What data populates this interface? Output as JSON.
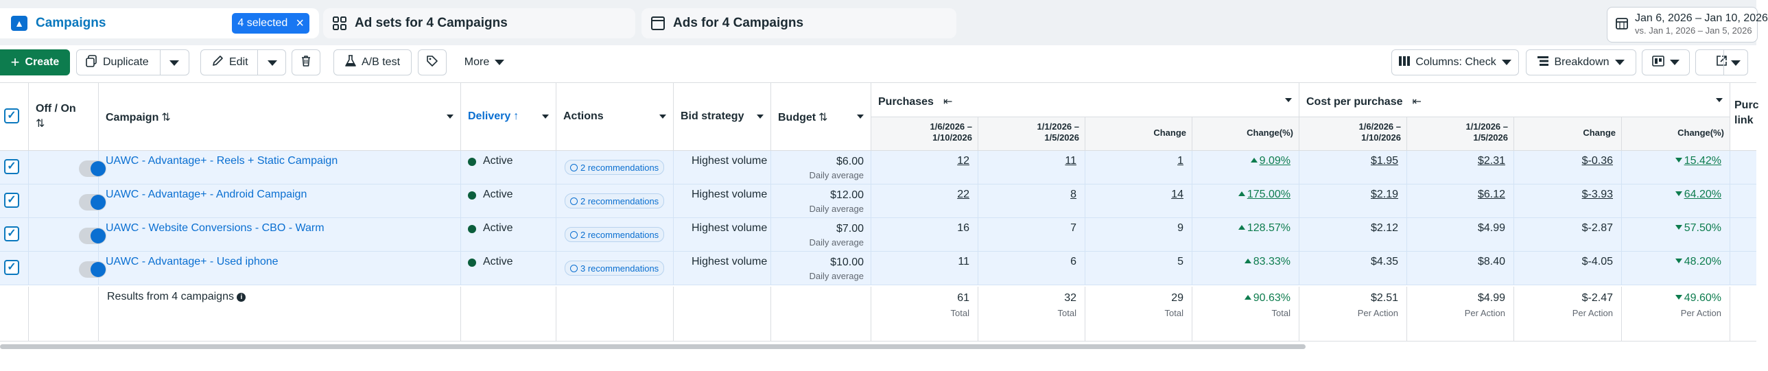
{
  "tabs": {
    "campaigns": {
      "icon": "campaigns-icon",
      "label": "Campaigns",
      "selected": "4 selected",
      "close": "×"
    },
    "adsets": {
      "icon": "grid-icon",
      "label": "Ad sets for 4 Campaigns"
    },
    "ads": {
      "icon": "ad-window-icon",
      "label": "Ads for 4 Campaigns"
    }
  },
  "date_range": {
    "icon": "calendar-icon",
    "main": "Jan 6, 2026 – Jan 10, 2026",
    "compare": "vs. Jan 1, 2026 – Jan 5, 2026"
  },
  "toolbar": {
    "create": "Create",
    "duplicate": "Duplicate",
    "edit": "Edit",
    "ab_test": "A/B test",
    "more": "More",
    "columns": "Columns: Check",
    "breakdown": "Breakdown"
  },
  "table": {
    "headers": {
      "off_on": "Off / On",
      "campaign": "Campaign",
      "delivery": "Delivery",
      "actions": "Actions",
      "bid_strategy": "Bid strategy",
      "budget": "Budget",
      "purchases": "Purchases",
      "cost_per_purchase": "Cost per purchase",
      "next_col_line1": "Purc",
      "next_col_line2": "link"
    },
    "subheaders": {
      "period_current": "1/6/2026 –\n1/10/2026",
      "period_prev": "1/1/2026 –\n1/5/2026",
      "change": "Change",
      "change_pct": "Change(%)"
    },
    "rows": [
      {
        "name": "UAWC - Advantage+ - Reels + Static Campaign",
        "delivery": "Active",
        "actions": "2 recommendations",
        "bid": "Highest volume",
        "budget": "$6.00",
        "budget_note": "Daily average",
        "p_cur": "12",
        "p_prev": "11",
        "p_change": "1",
        "p_change_pct": "9.09%",
        "c_cur": "$1.95",
        "c_prev": "$2.31",
        "c_change": "$-0.36",
        "c_change_pct": "15.42%"
      },
      {
        "name": "UAWC - Advantage+ - Android Campaign",
        "delivery": "Active",
        "actions": "2 recommendations",
        "bid": "Highest volume",
        "budget": "$12.00",
        "budget_note": "Daily average",
        "p_cur": "22",
        "p_prev": "8",
        "p_change": "14",
        "p_change_pct": "175.00%",
        "c_cur": "$2.19",
        "c_prev": "$6.12",
        "c_change": "$-3.93",
        "c_change_pct": "64.20%"
      },
      {
        "name": "UAWC - Website Conversions - CBO - Warm",
        "delivery": "Active",
        "actions": "2 recommendations",
        "bid": "Highest volume",
        "budget": "$7.00",
        "budget_note": "Daily average",
        "p_cur": "16",
        "p_prev": "7",
        "p_change": "9",
        "p_change_pct": "128.57%",
        "c_cur": "$2.12",
        "c_prev": "$4.99",
        "c_change": "$-2.87",
        "c_change_pct": "57.50%"
      },
      {
        "name": "UAWC - Advantage+ - Used iphone",
        "delivery": "Active",
        "actions": "3 recommendations",
        "bid": "Highest volume",
        "budget": "$10.00",
        "budget_note": "Daily average",
        "p_cur": "11",
        "p_prev": "6",
        "p_change": "5",
        "p_change_pct": "83.33%",
        "c_cur": "$4.35",
        "c_prev": "$8.40",
        "c_change": "$-4.05",
        "c_change_pct": "48.20%"
      }
    ],
    "totals": {
      "label": "Results from 4 campaigns",
      "p_cur": "61",
      "p_prev": "32",
      "p_change": "29",
      "p_change_pct": "90.63%",
      "p_note": "Total",
      "c_cur": "$2.51",
      "c_prev": "$4.99",
      "c_change": "$-2.47",
      "c_change_pct": "49.60%",
      "c_note": "Per Action"
    }
  },
  "colors": {
    "accent": "#0a6fd1",
    "create_green": "#0d7c4e",
    "selected_row": "#eaf3fe",
    "positive": "#0d7c4e"
  }
}
